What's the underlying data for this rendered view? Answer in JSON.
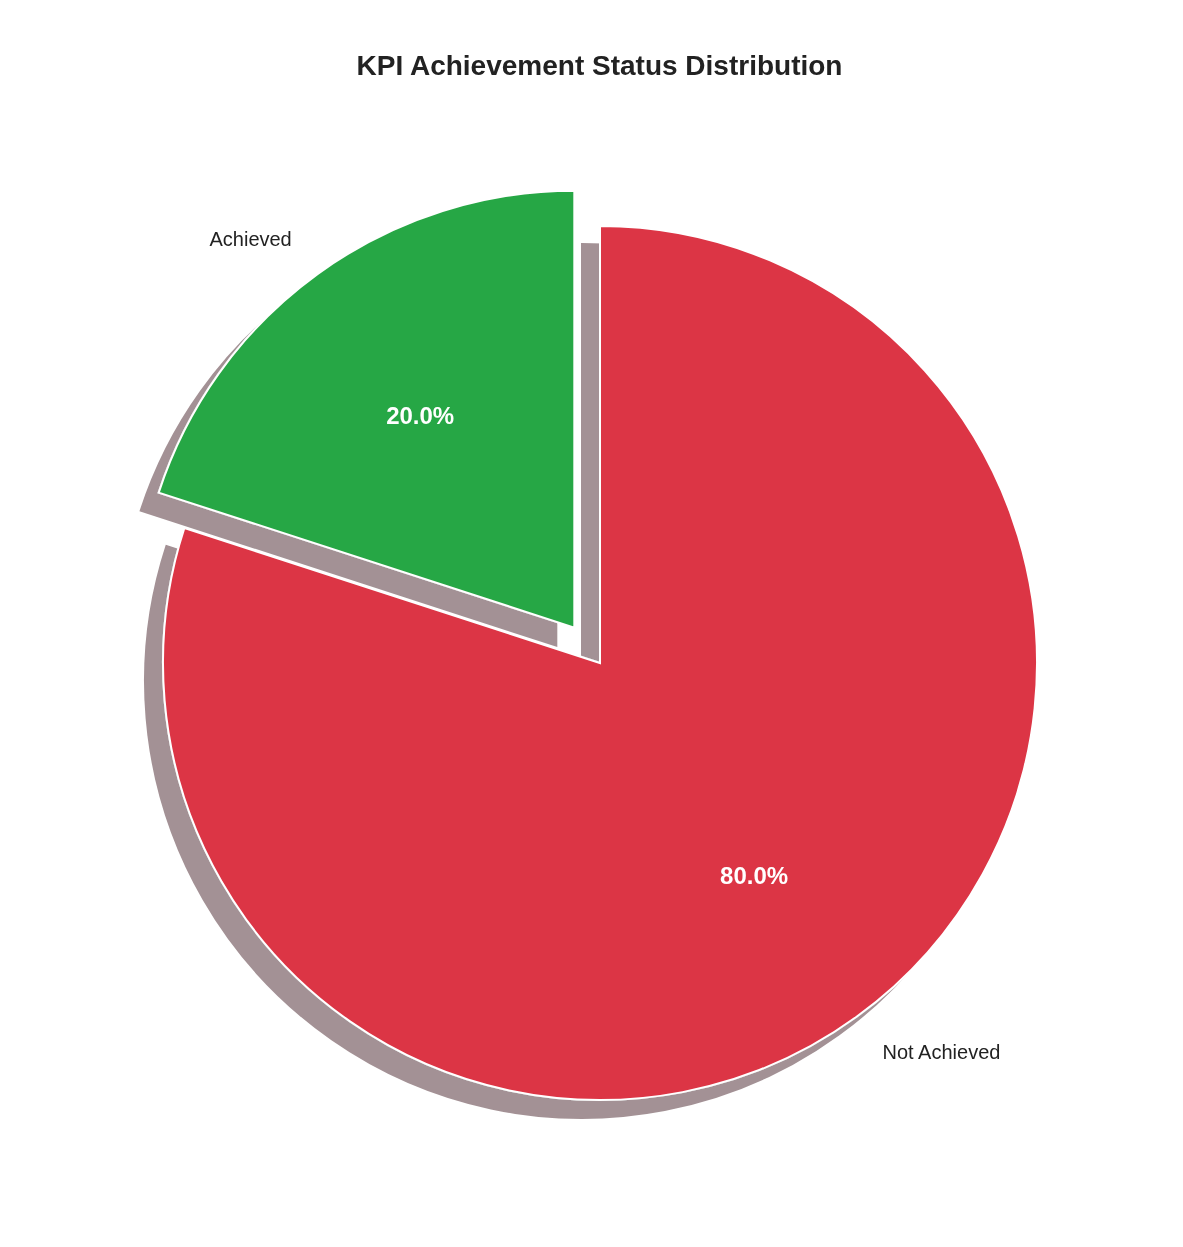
{
  "chart_data": {
    "type": "pie",
    "title": "KPI Achievement Status Distribution",
    "categories": [
      "Achieved",
      "Not Achieved"
    ],
    "values": [
      20,
      80
    ],
    "colors": [
      "#28a745",
      "#dc3545"
    ],
    "value_labels": [
      "20.0%",
      "80.0%"
    ]
  }
}
